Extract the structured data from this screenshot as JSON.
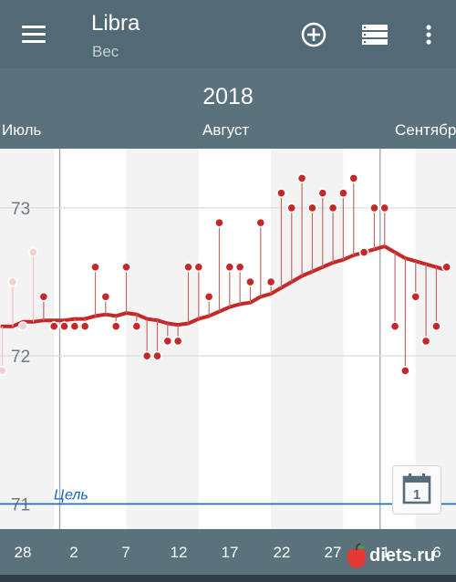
{
  "app": {
    "title": "Libra",
    "subtitle": "Вес"
  },
  "toolbar": {
    "add_icon": "plus-circle-icon",
    "list_icon": "list-icon",
    "more_icon": "more-vert-icon"
  },
  "timeline": {
    "year": "2018",
    "months": [
      "Июль",
      "Август",
      "Сентябр"
    ],
    "x_ticks": [
      "28",
      "2",
      "7",
      "12",
      "17",
      "22",
      "27",
      "1",
      "6"
    ]
  },
  "goal_label": "Цель",
  "calendar_button_day": "1",
  "watermark": "diets.ru",
  "colors": {
    "appbar": "#516a75",
    "accent": "#c62828",
    "goal": "#1565c0"
  },
  "chart_data": {
    "type": "line",
    "y_ticks": [
      "73",
      "72",
      "71"
    ],
    "ylim": [
      70.83,
      73.4
    ],
    "goal": 71.0,
    "x_dates": [
      "2018-07-26",
      "2018-07-27",
      "2018-07-28",
      "2018-07-29",
      "2018-07-30",
      "2018-07-31",
      "2018-08-01",
      "2018-08-02",
      "2018-08-03",
      "2018-08-04",
      "2018-08-05",
      "2018-08-06",
      "2018-08-07",
      "2018-08-08",
      "2018-08-09",
      "2018-08-10",
      "2018-08-11",
      "2018-08-12",
      "2018-08-13",
      "2018-08-14",
      "2018-08-15",
      "2018-08-16",
      "2018-08-17",
      "2018-08-18",
      "2018-08-19",
      "2018-08-20",
      "2018-08-21",
      "2018-08-22",
      "2018-08-23",
      "2018-08-24",
      "2018-08-25",
      "2018-08-26",
      "2018-08-27",
      "2018-08-28",
      "2018-08-29",
      "2018-08-30",
      "2018-08-31",
      "2018-09-01",
      "2018-09-02",
      "2018-09-03",
      "2018-09-04",
      "2018-09-05",
      "2018-09-06",
      "2018-09-07"
    ],
    "series": [
      {
        "values": [
          71.9,
          72.5,
          72.2,
          72.7,
          72.4,
          72.2,
          72.2,
          72.2,
          72.2,
          72.6,
          72.4,
          72.2,
          72.6,
          72.2,
          72.0,
          72.0,
          72.1,
          72.1,
          72.6,
          72.6,
          72.4,
          72.9,
          72.6,
          72.6,
          72.5,
          72.9,
          72.5,
          73.1,
          73.0,
          73.2,
          73.0,
          73.1,
          73.0,
          73.1,
          73.2,
          72.7,
          73.0,
          73.0,
          72.2,
          71.9,
          72.4,
          72.1,
          72.2,
          72.6
        ]
      },
      {
        "values": [
          72.2,
          72.2,
          72.23,
          72.23,
          72.24,
          72.24,
          72.24,
          72.25,
          72.25,
          72.27,
          72.28,
          72.27,
          72.29,
          72.28,
          72.25,
          72.24,
          72.22,
          72.21,
          72.22,
          72.25,
          72.27,
          72.3,
          72.33,
          72.35,
          72.36,
          72.4,
          72.42,
          72.46,
          72.5,
          72.54,
          72.57,
          72.6,
          72.63,
          72.65,
          72.68,
          72.7,
          72.72,
          72.74,
          72.7,
          72.66,
          72.64,
          72.62,
          72.6,
          72.58
        ]
      }
    ]
  }
}
